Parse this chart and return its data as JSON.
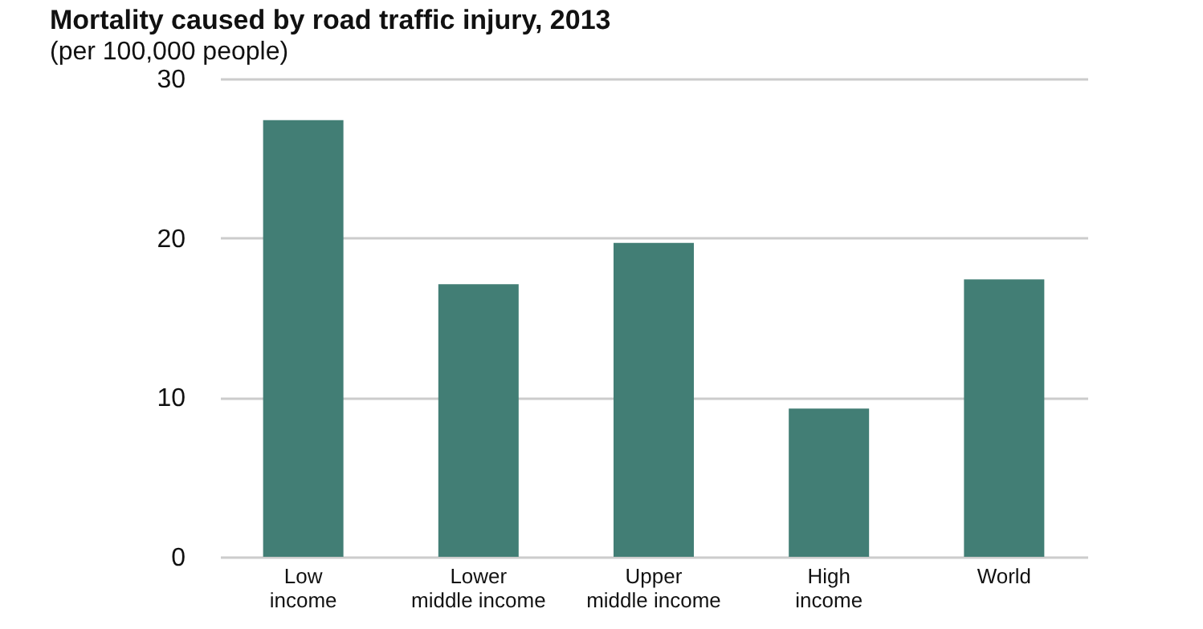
{
  "chart_data": {
    "type": "bar",
    "title": "Mortality caused by road traffic injury, 2013",
    "subtitle": "(per 100,000 people)",
    "categories": [
      "Low income",
      "Lower middle income",
      "Upper middle income",
      "High income",
      "World"
    ],
    "values": [
      27.4,
      17.1,
      19.7,
      9.3,
      17.4
    ],
    "color": "#427e75",
    "ylim": [
      0,
      30
    ],
    "yticks": [
      0,
      10,
      20,
      30
    ],
    "grid": "y"
  }
}
